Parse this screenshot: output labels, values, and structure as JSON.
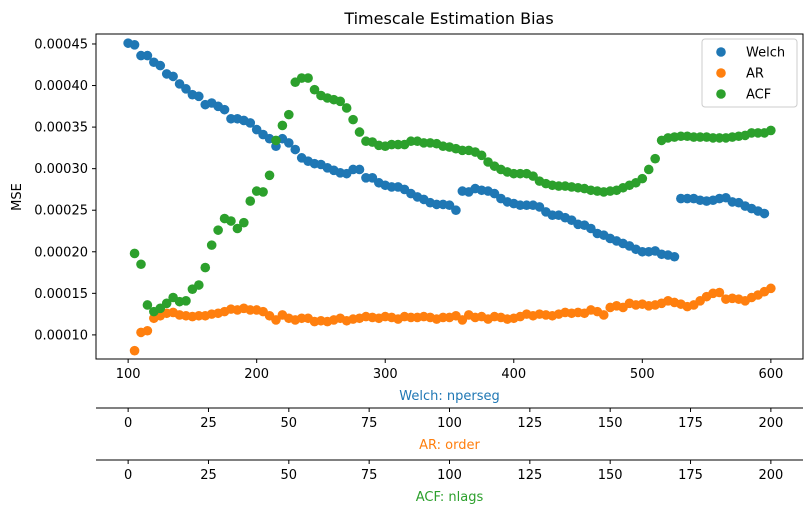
{
  "chart_data": {
    "type": "scatter",
    "title": "Timescale Estimation Bias",
    "ylabel": "MSE",
    "ylim": [
      7.1e-05,
      0.000462
    ],
    "yticks": [
      0.0001,
      0.00015,
      0.0002,
      0.00025,
      0.0003,
      0.00035,
      0.0004,
      0.00045
    ],
    "ytick_labels": [
      "0.00010",
      "0.00015",
      "0.00020",
      "0.00025",
      "0.00030",
      "0.00035",
      "0.00040",
      "0.00045"
    ],
    "legend": {
      "placement": "top-right",
      "entries": [
        "Welch",
        "AR",
        "ACF"
      ]
    },
    "axes": [
      {
        "label": "Welch: nperseg",
        "color": "#1f77b4",
        "xlim": [
          75,
          625
        ],
        "ticks": [
          100,
          200,
          300,
          400,
          500,
          600
        ],
        "tick_labels": [
          "100",
          "200",
          "300",
          "400",
          "500",
          "600"
        ]
      },
      {
        "label": "AR: order",
        "color": "#ff7f0e",
        "xlim": [
          -10,
          210
        ],
        "ticks": [
          0,
          25,
          50,
          75,
          100,
          125,
          150,
          175,
          200
        ],
        "tick_labels": [
          "0",
          "25",
          "50",
          "75",
          "100",
          "125",
          "150",
          "175",
          "200"
        ]
      },
      {
        "label": "ACF: nlags",
        "color": "#2ca02c",
        "xlim": [
          -10,
          210
        ],
        "ticks": [
          0,
          25,
          50,
          75,
          100,
          125,
          150,
          175,
          200
        ],
        "tick_labels": [
          "0",
          "25",
          "50",
          "75",
          "100",
          "125",
          "150",
          "175",
          "200"
        ]
      }
    ],
    "series": [
      {
        "name": "Welch",
        "color": "#1f77b4",
        "axis": 0,
        "x": [
          100,
          105,
          110,
          115,
          120,
          125,
          130,
          135,
          140,
          145,
          150,
          155,
          160,
          165,
          170,
          175,
          180,
          185,
          190,
          195,
          200,
          205,
          210,
          215,
          220,
          225,
          230,
          235,
          240,
          245,
          250,
          255,
          260,
          265,
          270,
          275,
          280,
          285,
          290,
          295,
          300,
          305,
          310,
          315,
          320,
          325,
          330,
          335,
          340,
          345,
          350,
          355,
          360,
          365,
          370,
          375,
          380,
          385,
          390,
          395,
          400,
          405,
          410,
          415,
          420,
          425,
          430,
          435,
          440,
          445,
          450,
          455,
          460,
          465,
          470,
          475,
          480,
          485,
          490,
          495,
          500,
          505,
          510,
          515,
          520,
          525,
          530,
          535,
          540,
          545,
          550,
          555,
          560,
          565,
          570,
          575,
          580,
          585,
          590,
          595
        ],
        "y": [
          0.000451,
          0.000449,
          0.000436,
          0.000436,
          0.000428,
          0.000424,
          0.000414,
          0.000411,
          0.000402,
          0.000396,
          0.000389,
          0.000387,
          0.000377,
          0.000379,
          0.000375,
          0.000371,
          0.00036,
          0.00036,
          0.000358,
          0.000355,
          0.000347,
          0.000341,
          0.000336,
          0.000327,
          0.000336,
          0.000331,
          0.000323,
          0.000313,
          0.000309,
          0.000306,
          0.000305,
          0.000301,
          0.000298,
          0.000295,
          0.000294,
          0.000299,
          0.000299,
          0.000289,
          0.000289,
          0.000283,
          0.00028,
          0.000278,
          0.000278,
          0.000275,
          0.00027,
          0.000266,
          0.000263,
          0.000259,
          0.000257,
          0.000257,
          0.000256,
          0.00025,
          0.000273,
          0.000272,
          0.000276,
          0.000274,
          0.000273,
          0.00027,
          0.000264,
          0.00026,
          0.000258,
          0.000256,
          0.000256,
          0.000256,
          0.000254,
          0.000248,
          0.000244,
          0.000244,
          0.000241,
          0.000238,
          0.000233,
          0.000232,
          0.000228,
          0.000222,
          0.00022,
          0.000216,
          0.000213,
          0.00021,
          0.000207,
          0.000203,
          0.0002,
          0.0002,
          0.000201,
          0.000197,
          0.000196,
          0.000194,
          0.000264,
          0.000264,
          0.000264,
          0.000262,
          0.000261,
          0.000262,
          0.000264,
          0.000265,
          0.00026,
          0.000259,
          0.000255,
          0.000252,
          0.000249,
          0.000246
        ]
      },
      {
        "name": "AR",
        "color": "#ff7f0e",
        "axis": 1,
        "x": [
          2,
          4,
          6,
          8,
          10,
          12,
          14,
          16,
          18,
          20,
          22,
          24,
          26,
          28,
          30,
          32,
          34,
          36,
          38,
          40,
          42,
          44,
          46,
          48,
          50,
          52,
          54,
          56,
          58,
          60,
          62,
          64,
          66,
          68,
          70,
          72,
          74,
          76,
          78,
          80,
          82,
          84,
          86,
          88,
          90,
          92,
          94,
          96,
          98,
          100,
          102,
          104,
          106,
          108,
          110,
          112,
          114,
          116,
          118,
          120,
          122,
          124,
          126,
          128,
          130,
          132,
          134,
          136,
          138,
          140,
          142,
          144,
          146,
          148,
          150,
          152,
          154,
          156,
          158,
          160,
          162,
          164,
          166,
          168,
          170,
          172,
          174,
          176,
          178,
          180,
          182,
          184,
          186,
          188,
          190,
          192,
          194,
          196,
          198,
          200
        ],
        "y": [
          8.1e-05,
          0.000103,
          0.000105,
          0.00012,
          0.000123,
          0.000126,
          0.000127,
          0.000124,
          0.000123,
          0.000122,
          0.000123,
          0.000123,
          0.000125,
          0.000126,
          0.000128,
          0.000131,
          0.00013,
          0.000132,
          0.00013,
          0.00013,
          0.000128,
          0.000123,
          0.000118,
          0.000124,
          0.00012,
          0.000118,
          0.00012,
          0.00012,
          0.000116,
          0.000117,
          0.000116,
          0.000118,
          0.00012,
          0.000117,
          0.000119,
          0.00012,
          0.000122,
          0.000121,
          0.00012,
          0.000122,
          0.000121,
          0.000119,
          0.000122,
          0.000121,
          0.000121,
          0.000122,
          0.000121,
          0.000119,
          0.000121,
          0.000121,
          0.000123,
          0.000118,
          0.000124,
          0.000121,
          0.000122,
          0.000119,
          0.000122,
          0.000121,
          0.000119,
          0.00012,
          0.000122,
          0.000125,
          0.000123,
          0.000125,
          0.000124,
          0.000123,
          0.000125,
          0.000127,
          0.000126,
          0.000127,
          0.000126,
          0.00013,
          0.000128,
          0.000124,
          0.000133,
          0.000135,
          0.000133,
          0.000138,
          0.000136,
          0.000137,
          0.000135,
          0.000136,
          0.000138,
          0.000141,
          0.000139,
          0.000137,
          0.000134,
          0.000136,
          0.000141,
          0.000146,
          0.00015,
          0.000151,
          0.000143,
          0.000144,
          0.000143,
          0.000141,
          0.000145,
          0.000148,
          0.000152,
          0.000156
        ]
      },
      {
        "name": "ACF",
        "color": "#2ca02c",
        "axis": 2,
        "x": [
          2,
          4,
          6,
          8,
          10,
          12,
          14,
          16,
          18,
          20,
          22,
          24,
          26,
          28,
          30,
          32,
          34,
          36,
          38,
          40,
          42,
          44,
          46,
          48,
          50,
          52,
          54,
          56,
          58,
          60,
          62,
          64,
          66,
          68,
          70,
          72,
          74,
          76,
          78,
          80,
          82,
          84,
          86,
          88,
          90,
          92,
          94,
          96,
          98,
          100,
          102,
          104,
          106,
          108,
          110,
          112,
          114,
          116,
          118,
          120,
          122,
          124,
          126,
          128,
          130,
          132,
          134,
          136,
          138,
          140,
          142,
          144,
          146,
          148,
          150,
          152,
          154,
          156,
          158,
          160,
          162,
          164,
          166,
          168,
          170,
          172,
          174,
          176,
          178,
          180,
          182,
          184,
          186,
          188,
          190,
          192,
          194,
          196,
          198,
          200
        ],
        "y": [
          0.000198,
          0.000185,
          0.000136,
          0.000128,
          0.000132,
          0.000138,
          0.000145,
          0.00014,
          0.000141,
          0.000155,
          0.00016,
          0.000181,
          0.000208,
          0.000226,
          0.00024,
          0.000237,
          0.000228,
          0.000235,
          0.000261,
          0.000273,
          0.000272,
          0.000292,
          0.000334,
          0.000352,
          0.000365,
          0.000404,
          0.000409,
          0.000409,
          0.000395,
          0.000388,
          0.000385,
          0.000383,
          0.000381,
          0.000373,
          0.000359,
          0.000344,
          0.000333,
          0.000332,
          0.000328,
          0.000327,
          0.000329,
          0.000329,
          0.000329,
          0.000333,
          0.000333,
          0.000331,
          0.000331,
          0.00033,
          0.000327,
          0.000326,
          0.000324,
          0.000322,
          0.000322,
          0.00032,
          0.000316,
          0.000308,
          0.000303,
          0.000299,
          0.000296,
          0.000294,
          0.000294,
          0.000294,
          0.000291,
          0.000285,
          0.000282,
          0.00028,
          0.000279,
          0.000279,
          0.000278,
          0.000277,
          0.000276,
          0.000274,
          0.000273,
          0.000272,
          0.000273,
          0.000274,
          0.000277,
          0.00028,
          0.000283,
          0.000288,
          0.000299,
          0.000312,
          0.000334,
          0.000337,
          0.000338,
          0.000339,
          0.000339,
          0.000338,
          0.000338,
          0.000338,
          0.000337,
          0.000337,
          0.000337,
          0.000338,
          0.000339,
          0.00034,
          0.000343,
          0.000343,
          0.000343,
          0.000346
        ]
      }
    ]
  }
}
